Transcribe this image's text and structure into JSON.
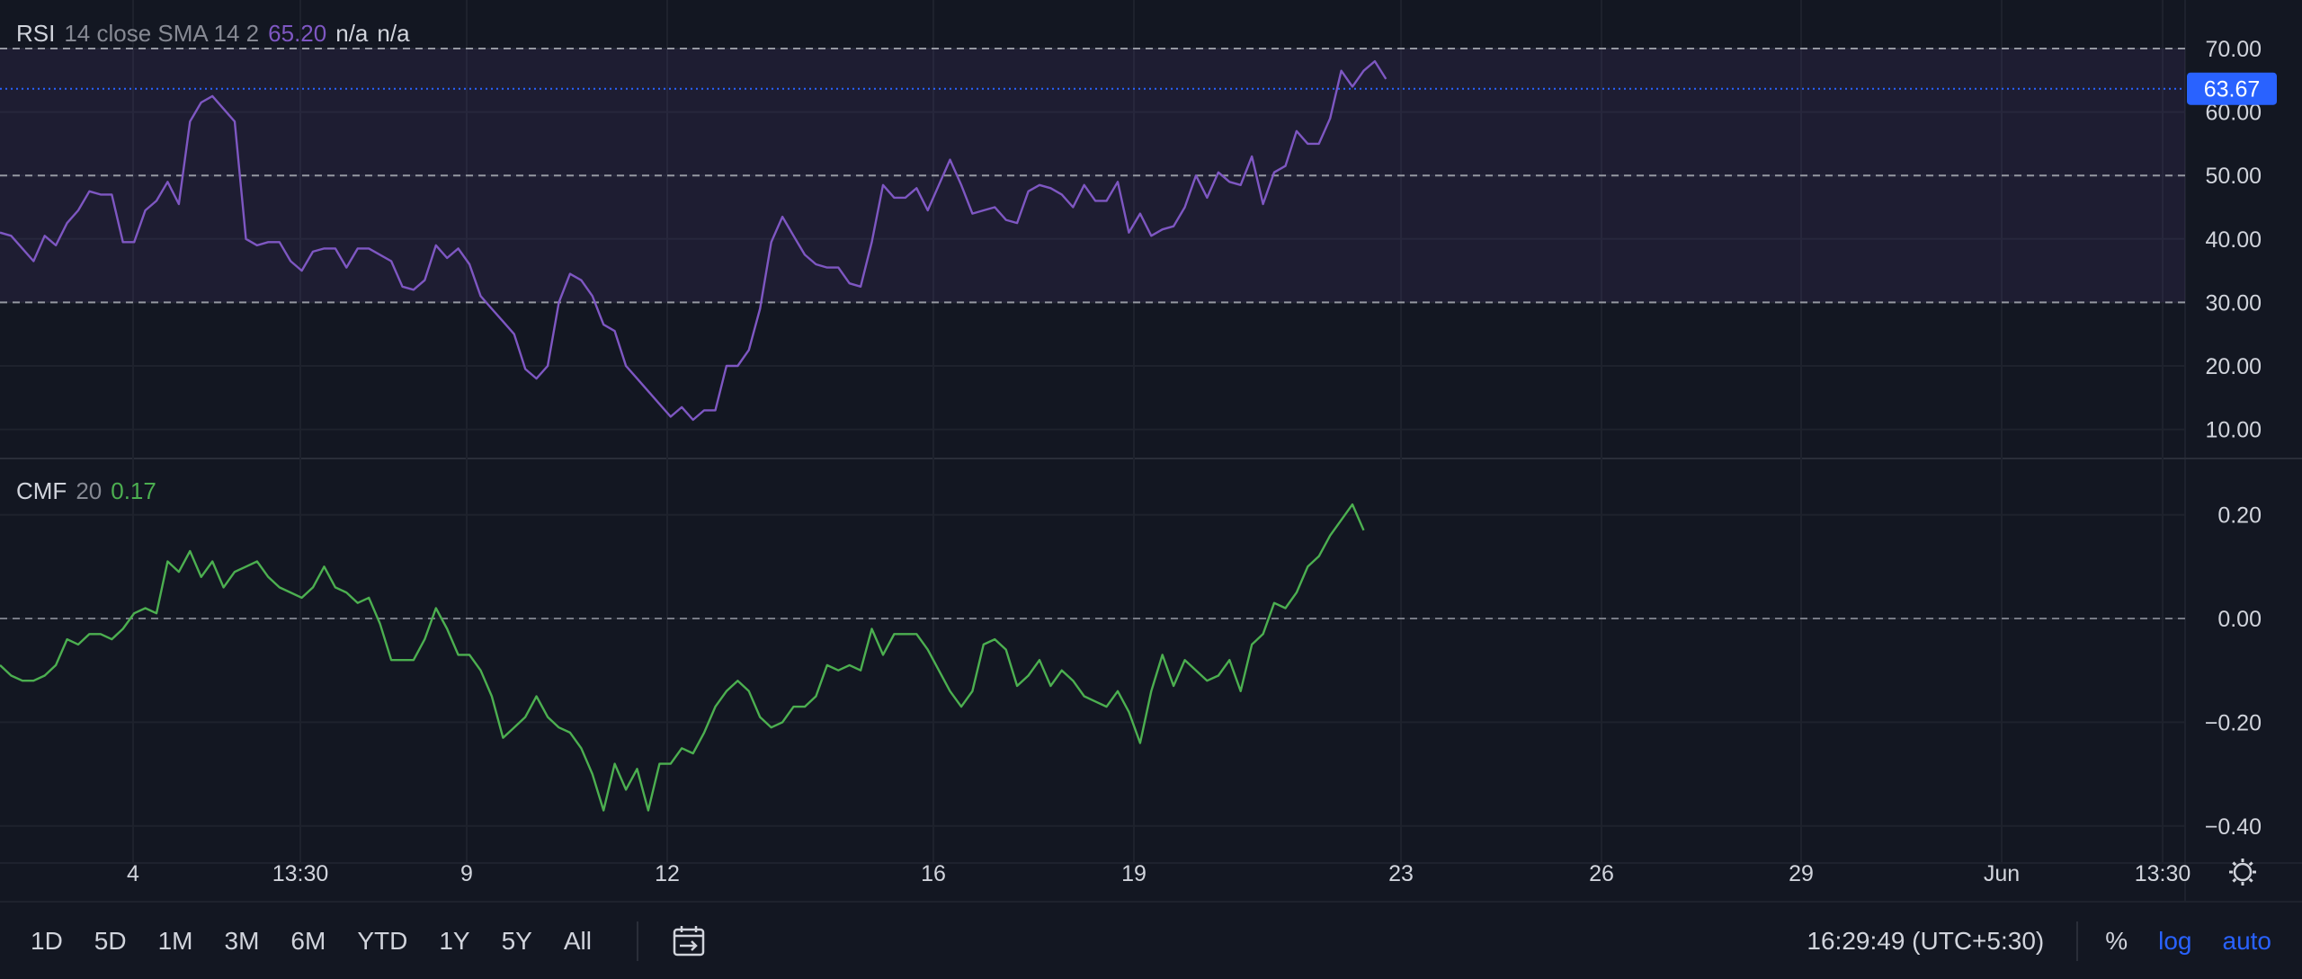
{
  "rsi_legend": {
    "name": "RSI",
    "params": "14 close SMA 14 2",
    "value": "65.20",
    "na1": "n/a",
    "na2": "n/a"
  },
  "cmf_legend": {
    "name": "CMF",
    "params": "20",
    "value": "0.17"
  },
  "current_rsi_badge": "63.67",
  "colors": {
    "background": "#131722",
    "rsi_line": "#7e57c2",
    "cmf_line": "#4caf50",
    "badge": "#2962ff",
    "band_fill": "#7e57c2"
  },
  "time_axis": {
    "labels": [
      "4",
      "13:30",
      "9",
      "12",
      "16",
      "19",
      "23",
      "26",
      "29",
      "Jun",
      "13:30"
    ]
  },
  "toolbar": {
    "ranges": [
      "1D",
      "5D",
      "1M",
      "3M",
      "6M",
      "YTD",
      "1Y",
      "5Y",
      "All"
    ],
    "goto_icon": "calendar-goto-icon",
    "clock": "16:29:49 (UTC+5:30)",
    "percent": "%",
    "log": "log",
    "auto": "auto",
    "settings_icon": "gear-icon"
  },
  "chart_data": [
    {
      "type": "line",
      "title": "RSI 14 close SMA 14 2",
      "series": [
        {
          "name": "RSI",
          "values": [
            41,
            40.5,
            38.5,
            36.5,
            40.5,
            39,
            42.5,
            44.5,
            47.5,
            47,
            47,
            39.5,
            39.5,
            44.5,
            46,
            49,
            45.5,
            58.5,
            61.5,
            62.5,
            60.5,
            58.5,
            40,
            39,
            39.5,
            39.5,
            36.5,
            35,
            38,
            38.5,
            38.5,
            35.5,
            38.5,
            38.5,
            37.5,
            36.5,
            32.5,
            32,
            33.5,
            39,
            37,
            38.5,
            36,
            31,
            29,
            27,
            25,
            19.5,
            18,
            20,
            30,
            34.5,
            33.5,
            31,
            26.5,
            25.5,
            20,
            18,
            16,
            14,
            12,
            13.5,
            11.5,
            13,
            13,
            20,
            20,
            22.5,
            29,
            39.5,
            43.5,
            40.5,
            37.5,
            36,
            35.5,
            35.5,
            33,
            32.5,
            39.5,
            48.5,
            46.5,
            46.5,
            48,
            44.5,
            48.5,
            52.5,
            48.5,
            44,
            44.5,
            45,
            43,
            42.5,
            47.5,
            48.5,
            48,
            47,
            45,
            48.5,
            46,
            46,
            49,
            41,
            44,
            40.5,
            41.5,
            42,
            45,
            50,
            46.5,
            50.5,
            49,
            48.5,
            53,
            45.5,
            50.5,
            51.5,
            57,
            55,
            55,
            59,
            66.5,
            64,
            66.5,
            68,
            65.2
          ]
        }
      ],
      "ylim": [
        5,
        75
      ],
      "yticks": [
        "70.00",
        "60.00",
        "50.00",
        "40.00",
        "30.00",
        "20.00",
        "10.00"
      ],
      "reference_lines": [
        70,
        50,
        30
      ],
      "current_value": 63.67
    },
    {
      "type": "line",
      "title": "CMF 20",
      "series": [
        {
          "name": "CMF",
          "values": [
            -0.09,
            -0.11,
            -0.12,
            -0.12,
            -0.11,
            -0.09,
            -0.04,
            -0.05,
            -0.03,
            -0.03,
            -0.04,
            -0.02,
            0.01,
            0.02,
            0.01,
            0.11,
            0.09,
            0.13,
            0.08,
            0.11,
            0.06,
            0.09,
            0.1,
            0.11,
            0.08,
            0.06,
            0.05,
            0.04,
            0.06,
            0.1,
            0.06,
            0.05,
            0.03,
            0.04,
            -0.01,
            -0.08,
            -0.08,
            -0.08,
            -0.04,
            0.02,
            -0.02,
            -0.07,
            -0.07,
            -0.1,
            -0.15,
            -0.23,
            -0.21,
            -0.19,
            -0.15,
            -0.19,
            -0.21,
            -0.22,
            -0.25,
            -0.3,
            -0.37,
            -0.28,
            -0.33,
            -0.29,
            -0.37,
            -0.28,
            -0.28,
            -0.25,
            -0.26,
            -0.22,
            -0.17,
            -0.14,
            -0.12,
            -0.14,
            -0.19,
            -0.21,
            -0.2,
            -0.17,
            -0.17,
            -0.15,
            -0.09,
            -0.1,
            -0.09,
            -0.1,
            -0.02,
            -0.07,
            -0.03,
            -0.03,
            -0.03,
            -0.06,
            -0.1,
            -0.14,
            -0.17,
            -0.14,
            -0.05,
            -0.04,
            -0.06,
            -0.13,
            -0.11,
            -0.08,
            -0.13,
            -0.1,
            -0.12,
            -0.15,
            -0.16,
            -0.17,
            -0.14,
            -0.18,
            -0.24,
            -0.14,
            -0.07,
            -0.13,
            -0.08,
            -0.1,
            -0.12,
            -0.11,
            -0.08,
            -0.14,
            -0.05,
            -0.03,
            0.03,
            0.02,
            0.05,
            0.1,
            0.12,
            0.16,
            0.19,
            0.22,
            0.17
          ]
        }
      ],
      "ylim": [
        -0.42,
        0.27
      ],
      "yticks": [
        "0.20",
        "0.00",
        "−0.20",
        "−0.40"
      ],
      "reference_lines": [
        0
      ]
    }
  ]
}
